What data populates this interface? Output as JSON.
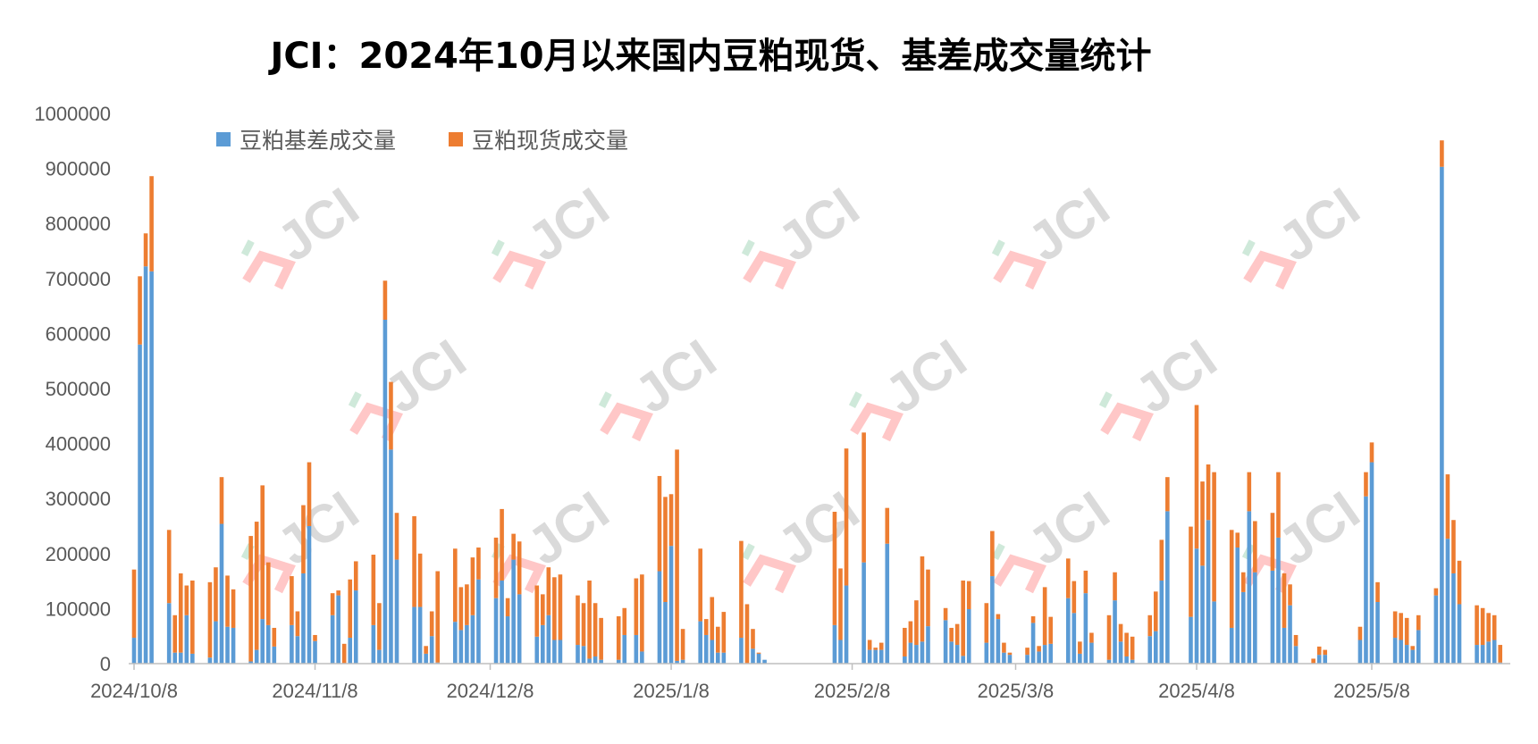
{
  "title": "JCI：2024年10月以来国内豆粕现货、基差成交量统计",
  "watermark": "JCI",
  "chart_data": {
    "type": "bar",
    "stacked": true,
    "title": "JCI：2024年10月以来国内豆粕现货、基差成交量统计",
    "xlabel": "",
    "ylabel": "",
    "ylim": [
      0,
      1000000
    ],
    "yticks": [
      "0",
      "100000",
      "200000",
      "300000",
      "400000",
      "500000",
      "600000",
      "700000",
      "800000",
      "900000",
      "1000000"
    ],
    "xticks": [
      "2024/10/8",
      "2024/11/8",
      "2024/12/8",
      "2025/1/8",
      "2025/2/8",
      "2025/3/8",
      "2025/4/8",
      "2025/5/8"
    ],
    "grid": false,
    "legend_position": "top-left",
    "colors": {
      "basis": "#5b9bd5",
      "spot": "#ed7d31"
    },
    "dates": [
      "2024/10/8",
      "2024/10/9",
      "2024/10/10",
      "2024/10/11",
      "2024/10/14",
      "2024/10/15",
      "2024/10/16",
      "2024/10/17",
      "2024/10/18",
      "2024/10/21",
      "2024/10/22",
      "2024/10/23",
      "2024/10/24",
      "2024/10/25",
      "2024/10/28",
      "2024/10/29",
      "2024/10/30",
      "2024/10/31",
      "2024/11/1",
      "2024/11/4",
      "2024/11/5",
      "2024/11/6",
      "2024/11/7",
      "2024/11/8",
      "2024/11/11",
      "2024/11/12",
      "2024/11/13",
      "2024/11/14",
      "2024/11/15",
      "2024/11/18",
      "2024/11/19",
      "2024/11/20",
      "2024/11/21",
      "2024/11/22",
      "2024/11/25",
      "2024/11/26",
      "2024/11/27",
      "2024/11/28",
      "2024/11/29",
      "2024/12/2",
      "2024/12/3",
      "2024/12/4",
      "2024/12/5",
      "2024/12/6",
      "2024/12/9",
      "2024/12/10",
      "2024/12/11",
      "2024/12/12",
      "2024/12/13",
      "2024/12/16",
      "2024/12/17",
      "2024/12/18",
      "2024/12/19",
      "2024/12/20",
      "2024/12/23",
      "2024/12/24",
      "2024/12/25",
      "2024/12/26",
      "2024/12/27",
      "2024/12/30",
      "2024/12/31",
      "2025/1/2",
      "2025/1/3",
      "2025/1/6",
      "2025/1/7",
      "2025/1/8",
      "2025/1/9",
      "2025/1/10",
      "2025/1/13",
      "2025/1/14",
      "2025/1/15",
      "2025/1/16",
      "2025/1/17",
      "2025/1/20",
      "2025/1/21",
      "2025/1/22",
      "2025/1/23",
      "2025/1/24",
      "2025/2/5",
      "2025/2/6",
      "2025/2/7",
      "2025/2/10",
      "2025/2/11",
      "2025/2/12",
      "2025/2/13",
      "2025/2/14",
      "2025/2/17",
      "2025/2/18",
      "2025/2/19",
      "2025/2/20",
      "2025/2/21",
      "2025/2/24",
      "2025/2/25",
      "2025/2/26",
      "2025/2/27",
      "2025/2/28",
      "2025/3/3",
      "2025/3/4",
      "2025/3/5",
      "2025/3/6",
      "2025/3/7",
      "2025/3/10",
      "2025/3/11",
      "2025/3/12",
      "2025/3/13",
      "2025/3/14",
      "2025/3/17",
      "2025/3/18",
      "2025/3/19",
      "2025/3/20",
      "2025/3/21",
      "2025/3/24",
      "2025/3/25",
      "2025/3/26",
      "2025/3/27",
      "2025/3/28",
      "2025/3/31",
      "2025/4/1",
      "2025/4/2",
      "2025/4/3",
      "2025/4/7",
      "2025/4/8",
      "2025/4/9",
      "2025/4/10",
      "2025/4/11",
      "2025/4/14",
      "2025/4/15",
      "2025/4/16",
      "2025/4/17",
      "2025/4/18",
      "2025/4/21",
      "2025/4/22",
      "2025/4/23",
      "2025/4/24",
      "2025/4/25",
      "2025/4/28",
      "2025/4/29",
      "2025/4/30",
      "2025/5/6",
      "2025/5/7",
      "2025/5/8",
      "2025/5/9",
      "2025/5/12",
      "2025/5/13",
      "2025/5/14",
      "2025/5/15",
      "2025/5/16",
      "2025/5/19",
      "2025/5/20",
      "2025/5/21",
      "2025/5/22",
      "2025/5/23",
      "2025/5/26",
      "2025/5/27",
      "2025/5/28",
      "2025/5/29",
      "2025/5/30"
    ],
    "series": [
      {
        "name": "豆粕基差成交量",
        "key": "basis",
        "values": [
          47000,
          580000,
          722000,
          713000,
          110000,
          20000,
          20000,
          88000,
          18000,
          11000,
          77000,
          254000,
          67000,
          65000,
          4000,
          25000,
          81000,
          70000,
          31000,
          70000,
          50000,
          164000,
          250000,
          41000,
          88000,
          124000,
          0,
          47000,
          133000,
          70000,
          25000,
          625000,
          389000,
          189000,
          103000,
          103000,
          18000,
          50000,
          2000,
          76000,
          61000,
          70000,
          88000,
          153000,
          119000,
          151000,
          86000,
          189000,
          126000,
          49000,
          70000,
          88000,
          43000,
          43000,
          34000,
          32000,
          9000,
          13000,
          7000,
          7000,
          52000,
          52000,
          22000,
          168000,
          112000,
          214000,
          5000,
          7000,
          77000,
          52000,
          43000,
          20000,
          20000,
          47000,
          0,
          27000,
          18000,
          7000,
          70000,
          43000,
          142000,
          184000,
          25000,
          25000,
          25000,
          218000,
          13000,
          38000,
          34000,
          40000,
          68000,
          79000,
          40000,
          34000,
          14000,
          99000,
          38000,
          159000,
          81000,
          20000,
          16000,
          16000,
          74000,
          22000,
          34000,
          36000,
          119000,
          92000,
          18000,
          128000,
          38000,
          7000,
          115000,
          40000,
          13000,
          7000,
          50000,
          59000,
          151000,
          277000,
          85000,
          209000,
          178000,
          261000,
          113000,
          65000,
          211000,
          130000,
          277000,
          166000,
          169000,
          229000,
          65000,
          106000,
          32000,
          0,
          16000,
          16000,
          43000,
          304000,
          366000,
          112000,
          47000,
          43000,
          34000,
          25000,
          61000,
          124000,
          903000,
          227000,
          164000,
          108000,
          34000,
          34000,
          40000,
          43000,
          2000
        ]
      },
      {
        "name": "豆粕现货成交量",
        "key": "spot",
        "values": [
          124000,
          124000,
          60000,
          173000,
          133000,
          68000,
          144000,
          54000,
          133000,
          137000,
          98000,
          85000,
          93000,
          70000,
          228000,
          233000,
          243000,
          114000,
          34000,
          89000,
          45000,
          124000,
          116000,
          11000,
          40000,
          9000,
          36000,
          106000,
          53000,
          128000,
          85000,
          71000,
          123000,
          85000,
          165000,
          97000,
          14000,
          45000,
          166000,
          133000,
          78000,
          74000,
          105000,
          58000,
          110000,
          130000,
          33000,
          47000,
          96000,
          93000,
          56000,
          87000,
          114000,
          119000,
          90000,
          78000,
          142000,
          97000,
          76000,
          79000,
          49000,
          103000,
          140000,
          173000,
          191000,
          94000,
          384000,
          56000,
          132000,
          29000,
          78000,
          47000,
          74000,
          176000,
          108000,
          36000,
          2000,
          0,
          206000,
          130000,
          249000,
          236000,
          18000,
          4000,
          13000,
          65000,
          52000,
          39000,
          81000,
          155000,
          103000,
          22000,
          25000,
          38000,
          137000,
          51000,
          72000,
          82000,
          9000,
          18000,
          4000,
          13000,
          12000,
          10000,
          105000,
          49000,
          72000,
          58000,
          22000,
          41000,
          18000,
          81000,
          51000,
          32000,
          43000,
          42000,
          38000,
          72000,
          74000,
          62000,
          164000,
          261000,
          153000,
          101000,
          235000,
          178000,
          27000,
          36000,
          71000,
          93000,
          105000,
          119000,
          99000,
          38000,
          20000,
          9000,
          15000,
          9000,
          24000,
          44000,
          36000,
          36000,
          48000,
          49000,
          49000,
          7000,
          27000,
          13000,
          48000,
          117000,
          97000,
          79000,
          72000,
          67000,
          52000,
          45000,
          32000
        ]
      }
    ]
  }
}
